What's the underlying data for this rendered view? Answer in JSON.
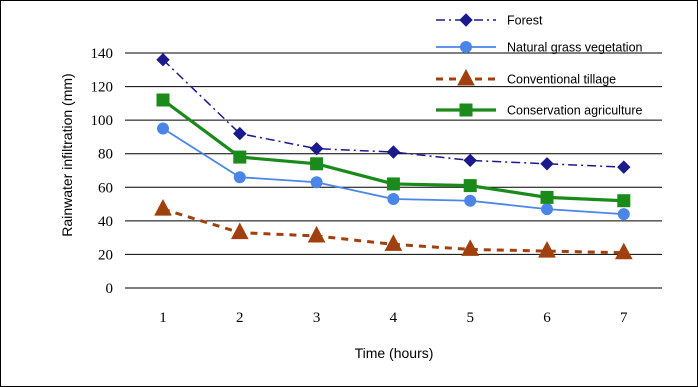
{
  "chart_data": {
    "type": "line",
    "xlabel": "Time (hours)",
    "ylabel": "Rainwater infiltration (mm)",
    "x": [
      1,
      2,
      3,
      4,
      5,
      6,
      7
    ],
    "ylim": [
      0,
      140
    ],
    "yticks": [
      0,
      20,
      40,
      60,
      80,
      100,
      120,
      140
    ],
    "grid": true,
    "legend_position": "top-right",
    "series": [
      {
        "name": "Forest",
        "values": [
          136,
          92,
          83,
          81,
          76,
          74,
          72
        ],
        "color": "#1a1a8c",
        "marker": "diamond",
        "dash": "dash-dot"
      },
      {
        "name": "Natural grass vegetation",
        "values": [
          95,
          66,
          63,
          53,
          52,
          47,
          44
        ],
        "color": "#4a86e8",
        "marker": "circle",
        "dash": "solid"
      },
      {
        "name": "Conventional tillage",
        "values": [
          47,
          33,
          31,
          26,
          23,
          22,
          21
        ],
        "color": "#a0400f",
        "marker": "triangle",
        "dash": "dashed"
      },
      {
        "name": "Conservation agriculture",
        "values": [
          112,
          78,
          74,
          62,
          61,
          54,
          52
        ],
        "color": "#1a8a1a",
        "marker": "square",
        "dash": "solid-thick"
      }
    ]
  }
}
